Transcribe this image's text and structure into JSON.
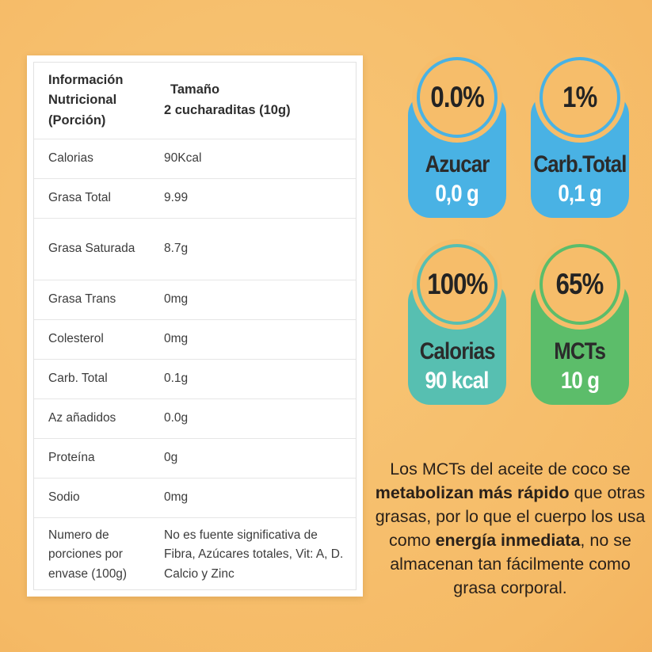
{
  "colors": {
    "background_light": "#f8c778",
    "background_dark": "#eea24b",
    "badge_blue": "#49b2e4",
    "badge_teal": "#57bfb1",
    "badge_green": "#5cbd6a",
    "card_white": "#ffffff"
  },
  "nutrition_table": {
    "header": {
      "col1": "Información Nutricional (Porción)",
      "col2_line1": "Tamaño",
      "col2_line2": "2 cucharaditas (10g)"
    },
    "rows": [
      {
        "label": "Calorias",
        "value": "90Kcal"
      },
      {
        "label": "Grasa Total",
        "value": "9.99"
      },
      {
        "label": "Grasa Saturada",
        "value": "8.7g"
      },
      {
        "label": "Grasa Trans",
        "value": "0mg"
      },
      {
        "label": "Colesterol",
        "value": "0mg"
      },
      {
        "label": "Carb. Total",
        "value": "0.1g"
      },
      {
        "label": "Az añadidos",
        "value": "0.0g"
      },
      {
        "label": "Proteína",
        "value": "0g"
      },
      {
        "label": "Sodio",
        "value": "0mg"
      },
      {
        "label": "Numero de porciones por envase (100g)",
        "value": "No es fuente significativa de Fibra, Azúcares totales, Vit: A, D. Calcio y Zinc"
      }
    ]
  },
  "badges": [
    {
      "percent": "0.0%",
      "label": "Azucar",
      "value": "0,0 g",
      "color": "#49b2e4"
    },
    {
      "percent": "1%",
      "label": "Carb.Total",
      "value": "0,1 g",
      "color": "#49b2e4"
    },
    {
      "percent": "100%",
      "label": "Calorias",
      "value": "90 kcal",
      "color": "#57bfb1"
    },
    {
      "percent": "65%",
      "label": "MCTs",
      "value": "10 g",
      "color": "#5cbd6a"
    }
  ],
  "footer_text": {
    "part1": "Los MCTs del aceite de coco se ",
    "bold1": "metabolizan más rápido",
    "part2": " que otras grasas, por lo que el cuerpo los usa como ",
    "bold2": "energía inmediata",
    "part3": ", no se almacenan tan fácilmente como grasa corporal."
  }
}
